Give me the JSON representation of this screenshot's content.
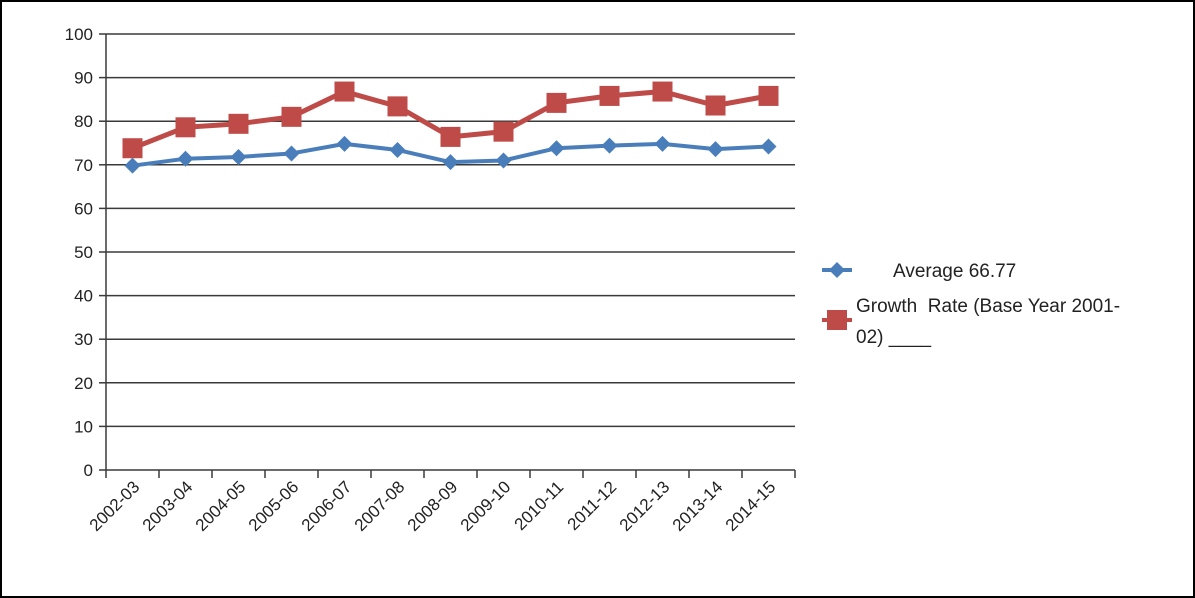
{
  "chart_data": {
    "type": "line",
    "title": "",
    "xlabel": "",
    "ylabel": "",
    "categories": [
      "2002-03",
      "2003-04",
      "2004-05",
      "2005-06",
      "2006-07",
      "2007-08",
      "2008-09",
      "2009-10",
      "2010-11",
      "2011-12",
      "2012-13",
      "2013-14",
      "2014-15"
    ],
    "ylim": [
      0,
      100
    ],
    "yticks": [
      0,
      10,
      20,
      30,
      40,
      50,
      60,
      70,
      80,
      90,
      100
    ],
    "grid": true,
    "legend_position": "right",
    "series": [
      {
        "name": "Average 66.77",
        "color": "#4a7ebb",
        "marker": "diamond",
        "values": [
          69.8,
          71.4,
          71.8,
          72.6,
          74.8,
          73.4,
          70.6,
          71.0,
          73.8,
          74.4,
          74.8,
          73.6,
          74.2
        ]
      },
      {
        "name": "Growth Rate (Base Year 2001-02) ____",
        "color": "#be4b48",
        "marker": "square",
        "values": [
          73.8,
          78.6,
          79.4,
          81.0,
          86.8,
          83.4,
          76.4,
          77.6,
          84.2,
          85.8,
          86.8,
          83.6,
          85.8
        ]
      }
    ]
  },
  "legend": {
    "items": [
      {
        "lines": [
          "Average 66.77"
        ]
      },
      {
        "lines": [
          "Growth  Rate (Base Year 2001-",
          "02) ____"
        ]
      }
    ]
  }
}
